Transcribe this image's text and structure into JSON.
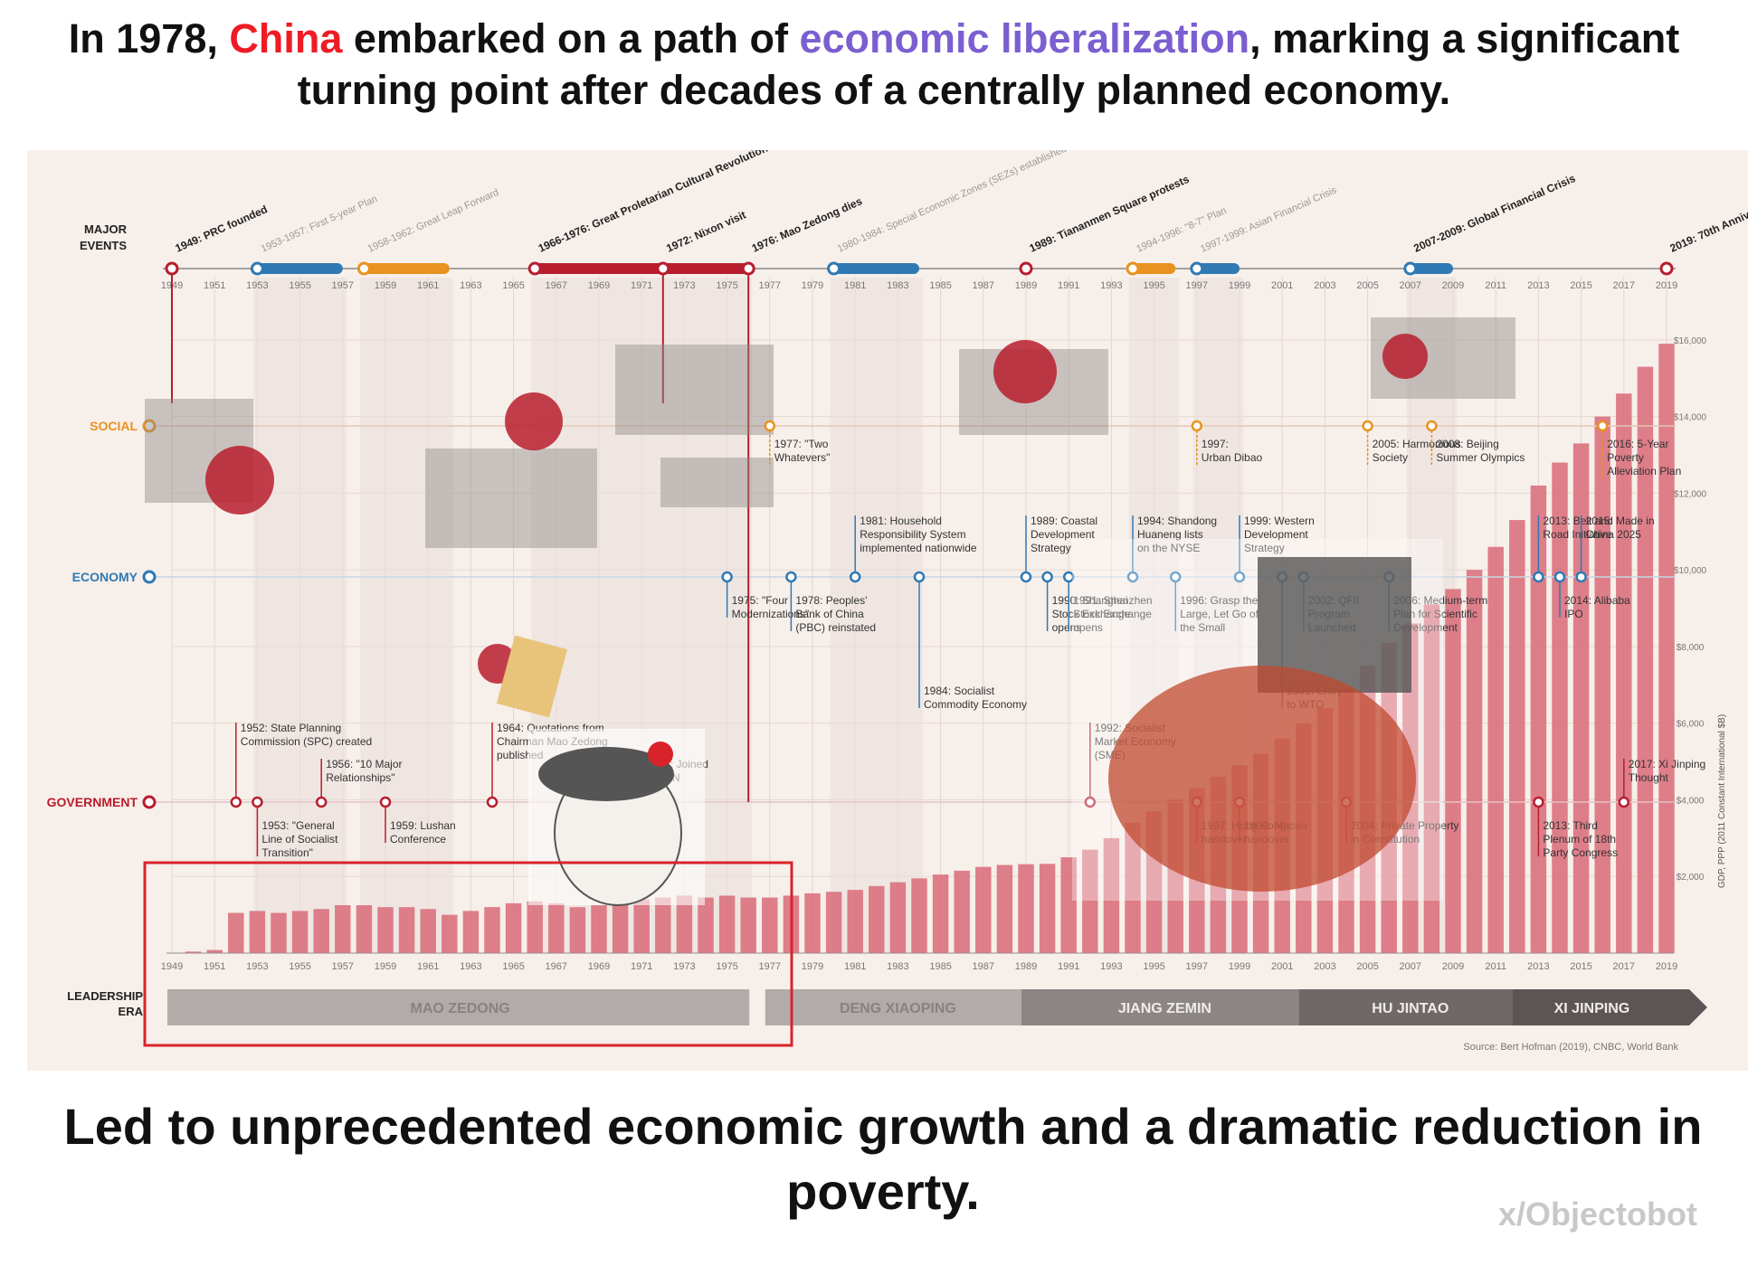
{
  "header": {
    "part1": "In 1978, ",
    "country": "China",
    "part2": " embarked on a path of ",
    "highlight": "economic liberalization",
    "part3": ", marking a significant turning point after decades of a centrally planned economy."
  },
  "footer": {
    "caption": "Led to unprecedented economic growth and a dramatic reduction in poverty.",
    "watermark": "x/Objectobot"
  },
  "colors": {
    "panel_bg": "#f7efea",
    "bar": "#d86a78",
    "red_accent": "#b81d2e",
    "blue_accent": "#2f79b4",
    "orange_accent": "#e8921f",
    "highlight_box": "#d9232a"
  },
  "chart_data": {
    "type": "bar",
    "row_labels": {
      "events": "MAJOR EVENTS",
      "social": "SOCIAL",
      "economy": "ECONOMY",
      "government": "GOVERNMENT",
      "leadership": "LEADERSHIP ERA"
    },
    "ylabel": "GDP, PPP (2011 Constant International $B)",
    "ylim": [
      0,
      16800
    ],
    "y_ticks": [
      {
        "value": 2000,
        "label": "$2,000"
      },
      {
        "value": 4000,
        "label": "$4,000"
      },
      {
        "value": 6000,
        "label": "$6,000"
      },
      {
        "value": 8000,
        "label": "$8,000"
      },
      {
        "value": 10000,
        "label": "$10,000"
      },
      {
        "value": 12000,
        "label": "$12,000"
      },
      {
        "value": 14000,
        "label": "$14,000"
      },
      {
        "value": 16000,
        "label": "$16,000"
      }
    ],
    "x_tick_labels": [
      "1949",
      "1951",
      "1953",
      "1955",
      "1957",
      "1959",
      "1961",
      "1963",
      "1965",
      "1967",
      "1969",
      "1971",
      "1973",
      "1975",
      "1977",
      "1979",
      "1981",
      "1983",
      "1985",
      "1987",
      "1989",
      "1991",
      "1993",
      "1995",
      "1997",
      "1999",
      "2001",
      "2003",
      "2005",
      "2007",
      "2009",
      "2011",
      "2013",
      "2015",
      "2017",
      "2019"
    ],
    "x": [
      1949,
      1950,
      1951,
      1952,
      1953,
      1954,
      1955,
      1956,
      1957,
      1958,
      1959,
      1960,
      1961,
      1962,
      1963,
      1964,
      1965,
      1966,
      1967,
      1968,
      1969,
      1970,
      1971,
      1972,
      1973,
      1974,
      1975,
      1976,
      1977,
      1978,
      1979,
      1980,
      1981,
      1982,
      1983,
      1984,
      1985,
      1986,
      1987,
      1988,
      1989,
      1990,
      1991,
      1992,
      1993,
      1994,
      1995,
      1996,
      1997,
      1998,
      1999,
      2000,
      2001,
      2002,
      2003,
      2004,
      2005,
      2006,
      2007,
      2008,
      2009,
      2010,
      2011,
      2012,
      2013,
      2014,
      2015,
      2016,
      2017,
      2018,
      2019
    ],
    "values": [
      0,
      40,
      80,
      1050,
      1100,
      1050,
      1100,
      1150,
      1250,
      1250,
      1200,
      1200,
      1150,
      1000,
      1100,
      1200,
      1300,
      1350,
      1300,
      1200,
      1250,
      1400,
      1400,
      1450,
      1500,
      1450,
      1500,
      1450,
      1450,
      1500,
      1560,
      1600,
      1650,
      1750,
      1850,
      1950,
      2050,
      2150,
      2250,
      2300,
      2320,
      2330,
      2500,
      2700,
      3000,
      3400,
      3700,
      4000,
      4300,
      4600,
      4900,
      5200,
      5600,
      6000,
      6400,
      6900,
      7500,
      8100,
      8600,
      9100,
      9500,
      10000,
      10600,
      11300,
      12200,
      12800,
      13300,
      14000,
      14600,
      15300,
      15900
    ],
    "eras": [
      {
        "name": "MAO ZEDONG",
        "start": 1949,
        "end": 1976
      },
      {
        "name": "DENG XIAOPING",
        "start": 1977,
        "end": 1989
      },
      {
        "name": "JIANG ZEMIN",
        "start": 1989,
        "end": 2002
      },
      {
        "name": "HU JINTAO",
        "start": 2002,
        "end": 2012
      },
      {
        "name": "XI JINPING",
        "start": 2012,
        "end": 2019
      }
    ],
    "major_events": [
      {
        "year": 1949,
        "label": "1949: PRC founded",
        "color": "#b81d2e",
        "emphasis": true
      },
      {
        "year": 1953,
        "label": "1953-1957: First 5-year Plan",
        "color": "#2f79b4",
        "emphasis": false
      },
      {
        "year": 1958,
        "label": "1958-1962: Great Leap Forward",
        "color": "#e8921f",
        "emphasis": false
      },
      {
        "year": 1966,
        "label": "1966-1976: Great Proletarian Cultural Revolution",
        "color": "#b81d2e",
        "emphasis": true
      },
      {
        "year": 1972,
        "label": "1972: Nixon visit",
        "color": "#b81d2e",
        "emphasis": true
      },
      {
        "year": 1976,
        "label": "1976: Mao Zedong dies",
        "color": "#b81d2e",
        "emphasis": true
      },
      {
        "year": 1980,
        "label": "1980-1984: Special Economic Zones (SEZs) established",
        "color": "#2f79b4",
        "emphasis": false
      },
      {
        "year": 1989,
        "label": "1989: Tiananmen Square protests",
        "color": "#b81d2e",
        "emphasis": true
      },
      {
        "year": 1994,
        "label": "1994-1996: \"8-7\" Plan",
        "color": "#e8921f",
        "emphasis": false
      },
      {
        "year": 1997,
        "label": "1997-1999: Asian Financial Crisis",
        "color": "#2f79b4",
        "emphasis": false
      },
      {
        "year": 2007,
        "label": "2007-2009: Global Financial Crisis",
        "color": "#2f79b4",
        "emphasis": true
      },
      {
        "year": 2019,
        "label": "2019: 70th Anniversary of the PRC",
        "color": "#b81d2e",
        "emphasis": true
      }
    ],
    "event_bars": [
      {
        "start": 1953,
        "end": 1957,
        "color": "#2f79b4"
      },
      {
        "start": 1958,
        "end": 1962,
        "color": "#e8921f"
      },
      {
        "start": 1966,
        "end": 1976,
        "color": "#b81d2e"
      },
      {
        "start": 1980,
        "end": 1984,
        "color": "#2f79b4"
      },
      {
        "start": 1994,
        "end": 1996,
        "color": "#e8921f"
      },
      {
        "start": 1997,
        "end": 1999,
        "color": "#2f79b4"
      },
      {
        "start": 2007,
        "end": 2009,
        "color": "#2f79b4"
      }
    ],
    "social_events": [
      {
        "year": 1977,
        "lines": [
          "1977: \"Two",
          "Whatevers\""
        ]
      },
      {
        "year": 1997,
        "lines": [
          "1997:",
          "Urban Dibao"
        ]
      },
      {
        "year": 2005,
        "lines": [
          "2005: Harmonious",
          "Society"
        ]
      },
      {
        "year": 2008,
        "lines": [
          "2008: Beijing",
          "Summer Olympics"
        ]
      },
      {
        "year": 2016,
        "lines": [
          "2016: 5-Year",
          "Poverty",
          "Alleviation Plan"
        ]
      }
    ],
    "economy_events": [
      {
        "year": 1975,
        "lines": [
          "1975: \"Four",
          "Modernizations\""
        ]
      },
      {
        "year": 1978,
        "lines": [
          "1978: Peoples'",
          "Bank of China",
          "(PBC) reinstated"
        ]
      },
      {
        "year": 1981,
        "lines": [
          "1981: Household",
          "Responsibility System",
          "implemented nationwide"
        ]
      },
      {
        "year": 1984,
        "lines": [
          "1984: Socialist",
          "Commodity Economy"
        ]
      },
      {
        "year": 1989,
        "lines": [
          "1989: Coastal",
          "Development",
          "Strategy"
        ]
      },
      {
        "year": 1990,
        "lines": [
          "1990: Shanghai",
          "Stock Exchange",
          "opens"
        ]
      },
      {
        "year": 1991,
        "lines": [
          "1991: Shenzhen",
          "Stock Exchange",
          "opens"
        ]
      },
      {
        "year": 1994,
        "lines": [
          "1994: Shandong",
          "Huaneng lists",
          "on the NYSE"
        ]
      },
      {
        "year": 1996,
        "lines": [
          "1996: Grasp the",
          "Large, Let Go of",
          "the Small"
        ]
      },
      {
        "year": 1999,
        "lines": [
          "1999: Western",
          "Development",
          "Strategy"
        ]
      },
      {
        "year": 2001,
        "lines": [
          "2001: Entry",
          "to WTO"
        ]
      },
      {
        "year": 2002,
        "lines": [
          "2002: QFII",
          "Program",
          "Launched"
        ]
      },
      {
        "year": 2006,
        "lines": [
          "2006: Medium-term",
          "Plan for Scientific",
          "Development"
        ]
      },
      {
        "year": 2013,
        "lines": [
          "2013: Belt and",
          "Road Initiative"
        ]
      },
      {
        "year": 2014,
        "lines": [
          "2014: Alibaba",
          "IPO"
        ]
      },
      {
        "year": 2015,
        "lines": [
          "2015: Made in",
          "China 2025"
        ]
      }
    ],
    "government_events": [
      {
        "year": 1952,
        "lines": [
          "1952: State Planning",
          "Commission (SPC) created"
        ]
      },
      {
        "year": 1953,
        "lines": [
          "1953: \"General",
          "Line of Socialist",
          "Transition\""
        ]
      },
      {
        "year": 1956,
        "lines": [
          "1956: \"10 Major",
          "Relationships\""
        ]
      },
      {
        "year": 1959,
        "lines": [
          "1959: Lushan",
          "Conference"
        ]
      },
      {
        "year": 1964,
        "lines": [
          "1964: Quotations from",
          "Chairman Mao Zedong",
          "published"
        ]
      },
      {
        "year": 1971,
        "lines": [
          "1971: Joined",
          "the UN"
        ]
      },
      {
        "year": 1992,
        "lines": [
          "1992: Socialist",
          "Market Economy",
          "(SME)"
        ]
      },
      {
        "year": 1997,
        "lines": [
          "1997: Hong Kong",
          "handover"
        ]
      },
      {
        "year": 1999,
        "lines": [
          "1999: Macau",
          "handover"
        ]
      },
      {
        "year": 2004,
        "lines": [
          "2004: Private Property",
          "in Constitution"
        ]
      },
      {
        "year": 2013,
        "lines": [
          "2013: Third",
          "Plenum of 18th",
          "Party Congress"
        ]
      },
      {
        "year": 2017,
        "lines": [
          "2017: Xi Jinping",
          "Thought"
        ]
      }
    ],
    "source": "Source: Bert Hofman (2019), CNBC, World Bank"
  }
}
